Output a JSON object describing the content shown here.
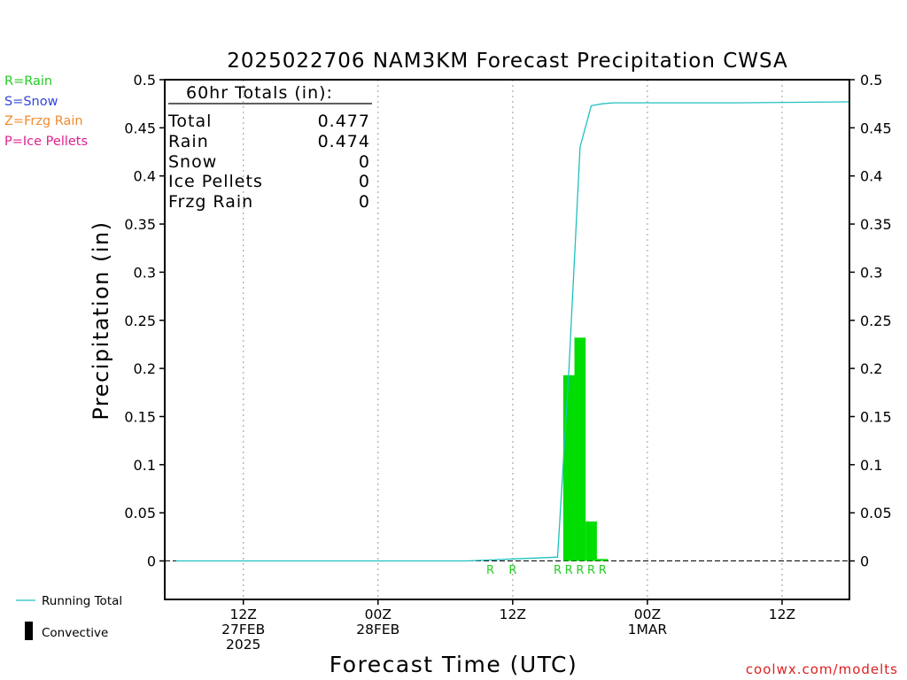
{
  "chart_data": {
    "type": "bar",
    "title": "2025022706 NAM3KM Forecast Precipitation CWSA",
    "xlabel": "Forecast Time (UTC)",
    "ylabel": "Precipitation (in)",
    "ylim": [
      -0.04,
      0.5
    ],
    "xlim_hours": [
      -1,
      60
    ],
    "y_ticks": [
      0,
      0.05,
      0.1,
      0.15,
      0.2,
      0.25,
      0.3,
      0.35,
      0.4,
      0.45,
      0.5
    ],
    "y_tick_labels": [
      "0",
      "0.05",
      "0.1",
      "0.15",
      "0.2",
      "0.25",
      "0.3",
      "0.35",
      "0.4",
      "0.45",
      "0.5"
    ],
    "x_ticks": [
      {
        "hour": 6,
        "line1": "12Z",
        "line2": "27FEB",
        "line3": "2025"
      },
      {
        "hour": 18,
        "line1": "00Z",
        "line2": "28FEB",
        "line3": ""
      },
      {
        "hour": 30,
        "line1": "12Z",
        "line2": "",
        "line3": ""
      },
      {
        "hour": 42,
        "line1": "00Z",
        "line2": "1MAR",
        "line3": ""
      },
      {
        "hour": 54,
        "line1": "12Z",
        "line2": "",
        "line3": ""
      }
    ],
    "grid": true,
    "legend_placement": "left",
    "legend": {
      "type_codes": [
        {
          "text": "R=Rain",
          "color": "#22cc22"
        },
        {
          "text": "S=Snow",
          "color": "#3344dd"
        },
        {
          "text": "Z=Frzg Rain",
          "color": "#f08c30"
        },
        {
          "text": "P=Ice Pellets",
          "color": "#e0208c"
        }
      ],
      "running_total_label": "Running Total",
      "convective_label": "Convective"
    },
    "totals_box": {
      "heading": "60hr Totals (in):",
      "rows": [
        {
          "label": "Total",
          "value": "0.477"
        },
        {
          "label": "Rain",
          "value": "0.474"
        },
        {
          "label": "Snow",
          "value": "0"
        },
        {
          "label": "Ice Pellets",
          "value": "0"
        },
        {
          "label": "Frzg Rain",
          "value": "0"
        }
      ]
    },
    "series": [
      {
        "kind": "bars",
        "color": "#00dd00",
        "bar_width_hours": 1,
        "bars": [
          {
            "start": 34.5,
            "value": 0.193
          },
          {
            "start": 35.5,
            "value": 0.232
          },
          {
            "start": 36.5,
            "value": 0.041
          },
          {
            "start": 37.5,
            "value": 0.002
          }
        ]
      },
      {
        "kind": "line",
        "color": "#20c0c0",
        "x": [
          0,
          10,
          20,
          26,
          28,
          30,
          32,
          34,
          35,
          36,
          37,
          38,
          39,
          40,
          50,
          60
        ],
        "y": [
          0,
          0,
          0,
          0,
          0.001,
          0.002,
          0.003,
          0.004,
          0.197,
          0.43,
          0.473,
          0.475,
          0.476,
          0.476,
          0.476,
          0.477
        ]
      }
    ],
    "precip_type_markers": [
      {
        "hour": 28,
        "text": "R"
      },
      {
        "hour": 30,
        "text": "R"
      },
      {
        "hour": 34,
        "text": "R"
      },
      {
        "hour": 35,
        "text": "R"
      },
      {
        "hour": 36,
        "text": "R"
      },
      {
        "hour": 37,
        "text": "R"
      },
      {
        "hour": 38,
        "text": "R"
      }
    ],
    "watermark": "coolwx.com/modelts"
  }
}
